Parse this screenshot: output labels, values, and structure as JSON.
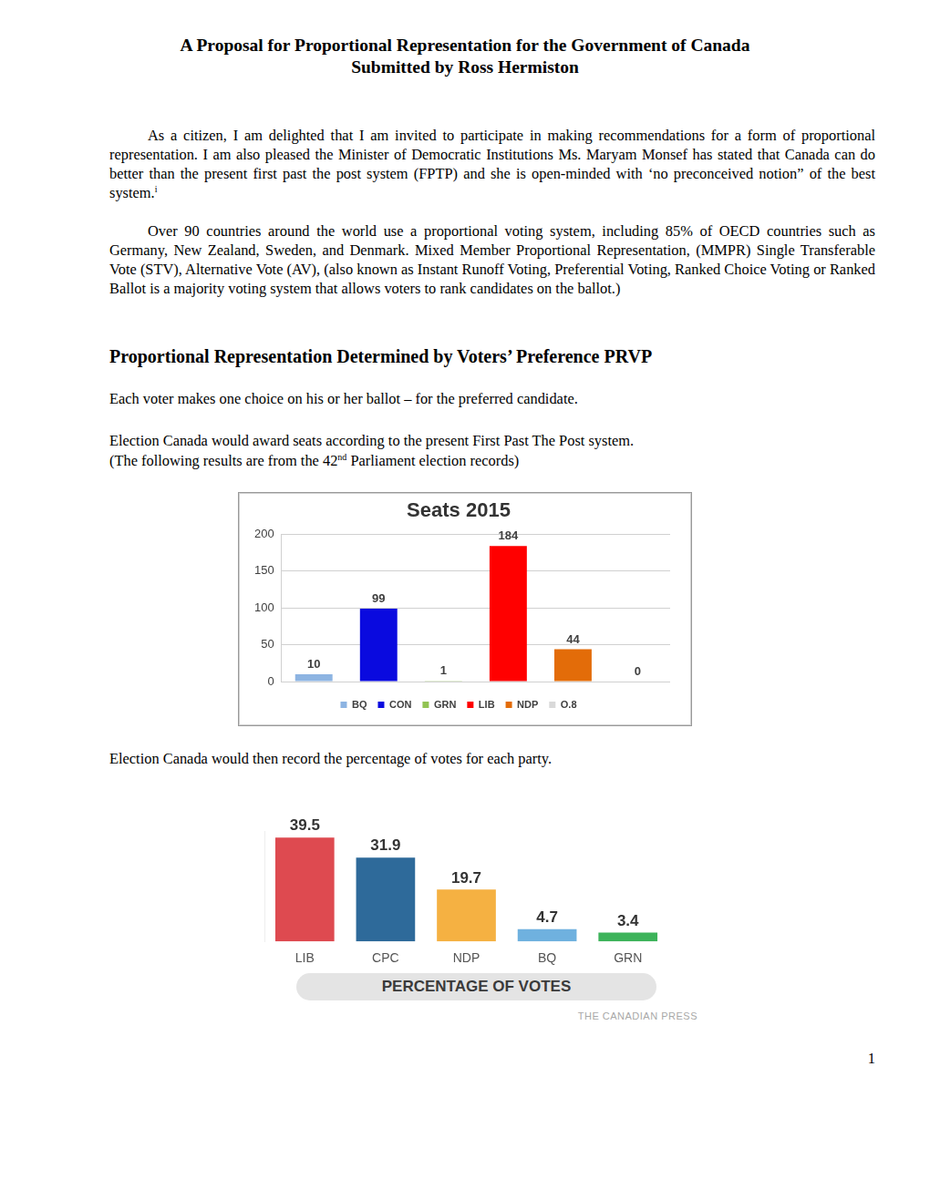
{
  "title": [
    "A Proposal for Proportional Representation for the Government of Canada",
    "Submitted by Ross Hermiston"
  ],
  "intro": [
    [
      {
        "text": "As a citizen, I am delighted that I am invited to participate in making recommendations for a form of proportional representation. I am also pleased the Minister of Democratic Institutions Ms. Maryam Monsef has stated that Canada can do better than the present first past the post system (FPTP) and she is open-minded with ‘no preconceived notion” of the best system."
      },
      {
        "sup": "i"
      }
    ],
    [
      {
        "text": "Over 90 countries around the world use a proportional voting system, including 85% of OECD countries such as Germany, New Zealand, Sweden, and Denmark. Mixed Member Proportional Representation, (MMPR) Single Transferable Vote (STV), Alternative Vote (AV), (also known as Instant Runoff Voting, Preferential Voting, Ranked Choice Voting or Ranked Ballot is a majority voting system that allows voters to rank candidates on the ballot.)"
      }
    ]
  ],
  "heading": "Proportional Representation Determined by Voters’ Preference PRVP",
  "method": [
    [
      {
        "text": "Each voter makes one choice on his or her ballot – for the preferred candidate."
      }
    ],
    [
      {
        "text": "Election Canada would award seats according to the present First Past The Post system."
      }
    ],
    [
      {
        "text": "(The following results are from the 42"
      },
      {
        "sup": "nd"
      },
      {
        "text": " Parliament election records)"
      }
    ]
  ],
  "after_seats": [
    {
      "text": "Election Canada would then record the percentage of votes for each party."
    }
  ],
  "chart_data": [
    {
      "type": "bar",
      "title": "Seats 2015",
      "categories": [
        "BQ",
        "CON",
        "GRN",
        "LIB",
        "NDP",
        "O.8"
      ],
      "values": [
        10,
        99,
        1,
        184,
        44,
        0
      ],
      "colors": [
        "#8db4e2",
        "#0a0adf",
        "#92c353",
        "#ff0000",
        "#e36c09",
        "#d9d9d9"
      ],
      "ylim": [
        0,
        200
      ],
      "yticks": [
        0,
        50,
        100,
        150,
        200
      ],
      "grid": true,
      "legend": "bottom",
      "data_labels": true,
      "tick_labels": "y"
    },
    {
      "type": "bar",
      "xlabel": "PERCENTAGE OF VOTES",
      "annotations": [
        "THE CANADIAN PRESS"
      ],
      "categories": [
        "LIB",
        "CPC",
        "NDP",
        "BQ",
        "GRN"
      ],
      "values": [
        39.5,
        31.9,
        19.7,
        4.7,
        3.4
      ],
      "colors": [
        "#de4a50",
        "#2e6a9a",
        "#f5b142",
        "#6fb1df",
        "#3db35a"
      ],
      "ylim": [
        0,
        42
      ],
      "grid": false,
      "data_labels": true,
      "tick_labels": "x"
    }
  ],
  "page_number": "1"
}
